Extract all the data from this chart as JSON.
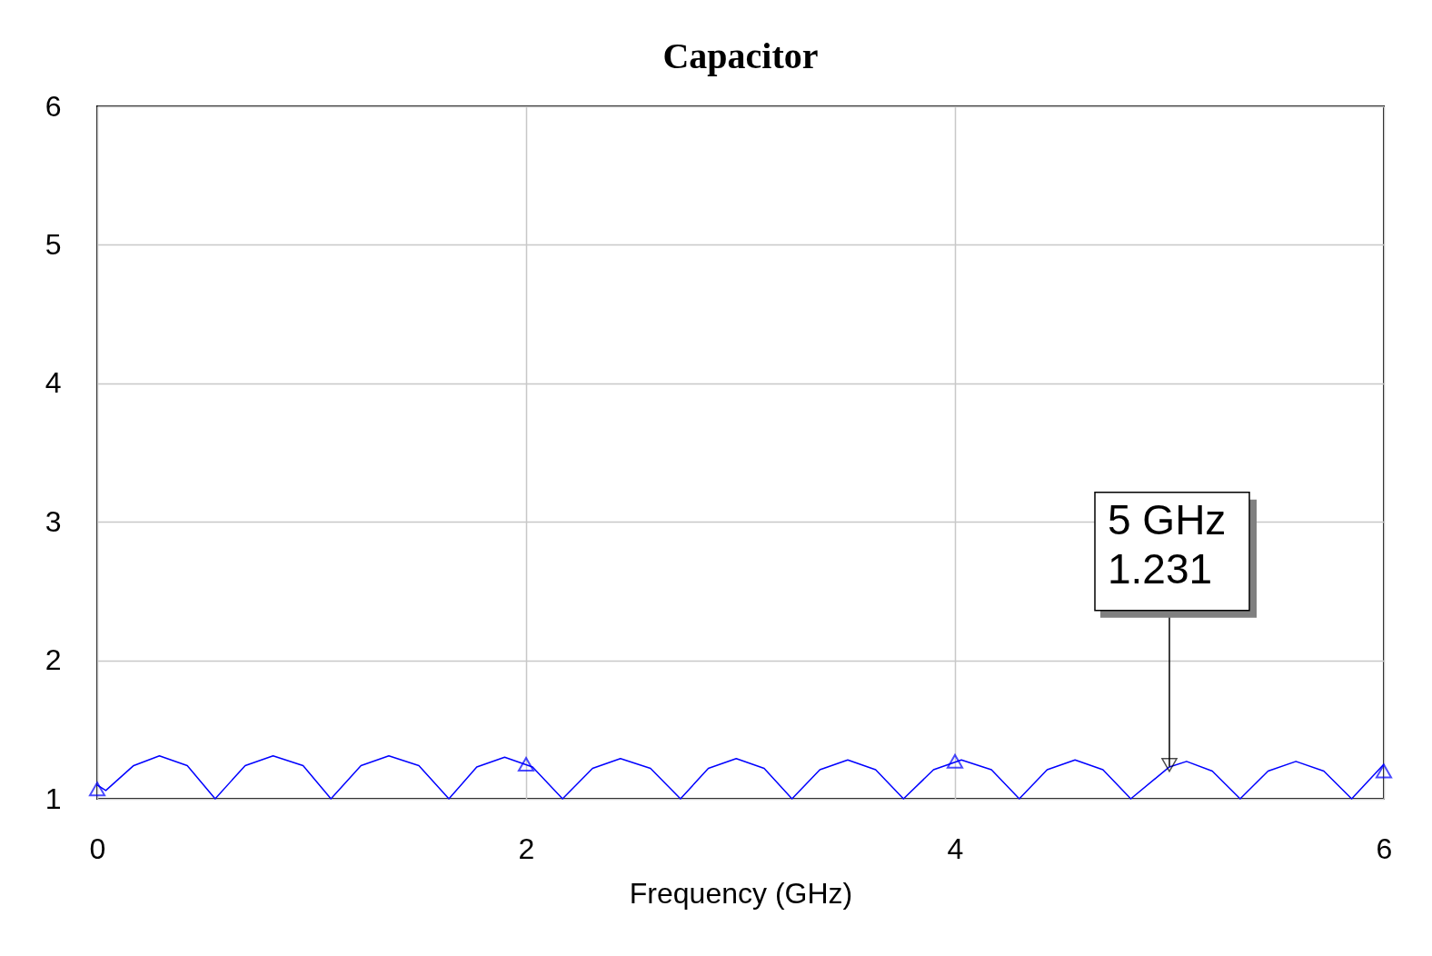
{
  "chart_data": {
    "type": "line",
    "title": "Capacitor",
    "xlabel": "Frequency (GHz)",
    "xlim": [
      0,
      6
    ],
    "xticks": [
      0,
      2,
      4,
      6
    ],
    "ylim": [
      1,
      6
    ],
    "yticks": [
      1,
      2,
      3,
      4,
      5,
      6
    ],
    "grid": true,
    "series": [
      {
        "color": "#0000ff",
        "x": [
          0,
          0.04,
          0.17,
          0.29,
          0.42,
          0.55,
          0.69,
          0.82,
          0.96,
          1.09,
          1.23,
          1.36,
          1.5,
          1.64,
          1.77,
          1.9,
          2.03,
          2.17,
          2.31,
          2.44,
          2.58,
          2.72,
          2.85,
          2.98,
          3.11,
          3.24,
          3.37,
          3.5,
          3.63,
          3.76,
          3.9,
          4.03,
          4.17,
          4.3,
          4.43,
          4.56,
          4.69,
          4.82,
          5,
          5.08,
          5.2,
          5.33,
          5.46,
          5.59,
          5.72,
          5.85,
          6
        ],
        "values": [
          1.1,
          1.06,
          1.24,
          1.31,
          1.24,
          1.0,
          1.24,
          1.31,
          1.24,
          1.0,
          1.24,
          1.31,
          1.24,
          1.0,
          1.23,
          1.3,
          1.23,
          1.0,
          1.22,
          1.29,
          1.22,
          1.0,
          1.22,
          1.29,
          1.22,
          1.0,
          1.21,
          1.28,
          1.21,
          1.0,
          1.21,
          1.28,
          1.21,
          1.0,
          1.21,
          1.28,
          1.21,
          1.0,
          1.23,
          1.27,
          1.2,
          1.0,
          1.2,
          1.27,
          1.2,
          1.0,
          1.25
        ]
      },
      {
        "type": "scatter",
        "marker": "triangle",
        "color": "#0000ff",
        "x": [
          0,
          2,
          4,
          6
        ],
        "values": [
          1.07,
          1.25,
          1.27,
          1.2
        ]
      }
    ],
    "annotations": [
      {
        "text": "5 GHz\n1.231",
        "x": 5,
        "y": 1.231
      }
    ]
  }
}
